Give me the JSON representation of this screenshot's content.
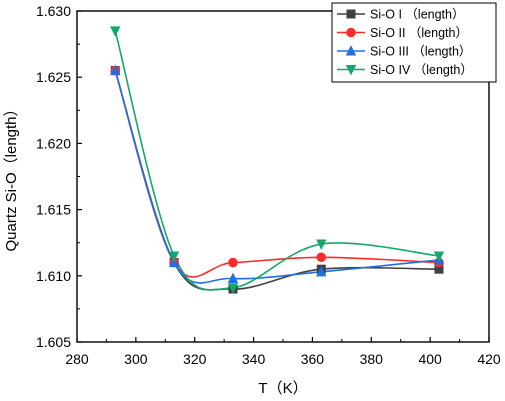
{
  "chart_data": {
    "type": "line",
    "xlabel": "T（K）",
    "ylabel": "Quartz Si-O（length）",
    "xlim": [
      280,
      420
    ],
    "ylim": [
      1.605,
      1.63
    ],
    "xticks": [
      280,
      300,
      320,
      340,
      360,
      380,
      400,
      420
    ],
    "yticks": [
      1.605,
      1.61,
      1.615,
      1.62,
      1.625,
      1.63
    ],
    "xtick_labels": [
      "280",
      "300",
      "320",
      "340",
      "360",
      "380",
      "400",
      "420"
    ],
    "ytick_labels": [
      "1.605",
      "1.610",
      "1.615",
      "1.620",
      "1.625",
      "1.630"
    ],
    "grid": false,
    "legend_position": "top-right",
    "series": [
      {
        "name": "Si-O I （length）",
        "color": "#404040",
        "marker": "square",
        "x": [
          293,
          313,
          333,
          363,
          403
        ],
        "y": [
          1.6255,
          1.611,
          1.609,
          1.6105,
          1.6105
        ]
      },
      {
        "name": "Si-O II （length）",
        "color": "#ff2a2a",
        "marker": "circle",
        "x": [
          293,
          313,
          333,
          363,
          403
        ],
        "y": [
          1.6255,
          1.611,
          1.611,
          1.6114,
          1.611
        ]
      },
      {
        "name": "Si-O III （length）",
        "color": "#1f6fe0",
        "marker": "triangle-up",
        "x": [
          293,
          313,
          333,
          363,
          403
        ],
        "y": [
          1.6255,
          1.611,
          1.6098,
          1.6103,
          1.6112
        ]
      },
      {
        "name": "Si-O IV （length）",
        "color": "#14a86a",
        "marker": "triangle-down",
        "x": [
          293,
          313,
          333,
          363,
          403
        ],
        "y": [
          1.6285,
          1.6115,
          1.6091,
          1.6124,
          1.6115
        ]
      }
    ]
  }
}
